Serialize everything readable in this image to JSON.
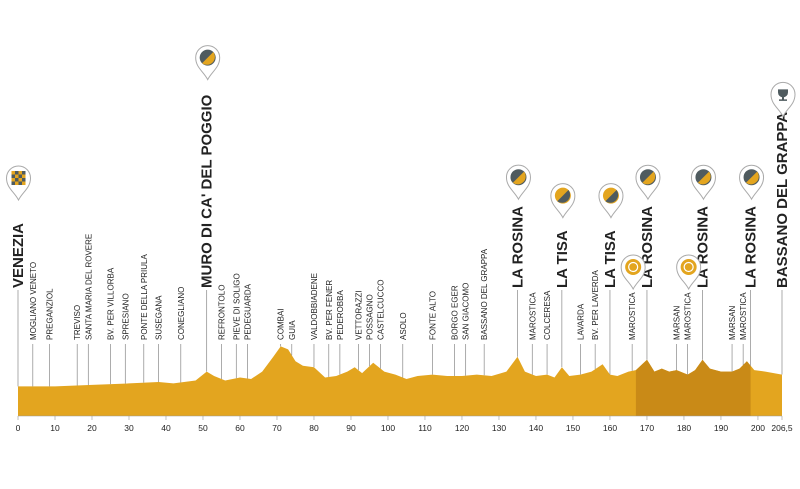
{
  "chart_data": {
    "type": "area",
    "title": "",
    "xlabel": "",
    "ylabel": "",
    "xlim": [
      0,
      206.5
    ],
    "x_ticks": [
      "0",
      "10",
      "20",
      "30",
      "40",
      "50",
      "60",
      "70",
      "80",
      "90",
      "100",
      "110",
      "120",
      "130",
      "140",
      "150",
      "160",
      "170",
      "180",
      "190",
      "200",
      "206,5"
    ],
    "colors": {
      "fill": "#E3A51F",
      "fill_dark": "#C98A17",
      "line": "#888888",
      "text": "#222222",
      "pin_dark": "#4F5B5F",
      "pin_gold": "#E9A91C"
    },
    "profile": [
      [
        0,
        0.2
      ],
      [
        10,
        0.2
      ],
      [
        20,
        0.21
      ],
      [
        30,
        0.22
      ],
      [
        38,
        0.23
      ],
      [
        42,
        0.22
      ],
      [
        48,
        0.24
      ],
      [
        51,
        0.3
      ],
      [
        53,
        0.27
      ],
      [
        56,
        0.24
      ],
      [
        60,
        0.26
      ],
      [
        63,
        0.25
      ],
      [
        66,
        0.3
      ],
      [
        69,
        0.4
      ],
      [
        71,
        0.47
      ],
      [
        73,
        0.45
      ],
      [
        75,
        0.37
      ],
      [
        77,
        0.34
      ],
      [
        80,
        0.33
      ],
      [
        83,
        0.26
      ],
      [
        86,
        0.27
      ],
      [
        89,
        0.3
      ],
      [
        91,
        0.33
      ],
      [
        93,
        0.29
      ],
      [
        96,
        0.36
      ],
      [
        99,
        0.3
      ],
      [
        102,
        0.28
      ],
      [
        105,
        0.25
      ],
      [
        108,
        0.27
      ],
      [
        112,
        0.28
      ],
      [
        116,
        0.27
      ],
      [
        120,
        0.27
      ],
      [
        124,
        0.28
      ],
      [
        128,
        0.27
      ],
      [
        132,
        0.3
      ],
      [
        135,
        0.4
      ],
      [
        137,
        0.3
      ],
      [
        140,
        0.27
      ],
      [
        143,
        0.28
      ],
      [
        145,
        0.26
      ],
      [
        147,
        0.33
      ],
      [
        149,
        0.27
      ],
      [
        152,
        0.28
      ],
      [
        155,
        0.3
      ],
      [
        158,
        0.35
      ],
      [
        160,
        0.28
      ],
      [
        162,
        0.27
      ],
      [
        165,
        0.3
      ],
      [
        167,
        0.31
      ],
      [
        170,
        0.38
      ],
      [
        172,
        0.3
      ],
      [
        174,
        0.32
      ],
      [
        176,
        0.3
      ],
      [
        178,
        0.31
      ],
      [
        181,
        0.28
      ],
      [
        183,
        0.31
      ],
      [
        185,
        0.38
      ],
      [
        187,
        0.32
      ],
      [
        190,
        0.3
      ],
      [
        193,
        0.3
      ],
      [
        195,
        0.32
      ],
      [
        197,
        0.37
      ],
      [
        199,
        0.31
      ],
      [
        202,
        0.3
      ],
      [
        206.5,
        0.28
      ]
    ],
    "final_circuit": [
      167,
      198
    ],
    "labels": [
      {
        "km": 0,
        "text": "VENEZIA",
        "style": "big"
      },
      {
        "km": 4,
        "text": "MOGLIANO VENETO"
      },
      {
        "km": 8.5,
        "text": "PREGANZIOL"
      },
      {
        "km": 16,
        "text": "TREVISO"
      },
      {
        "km": 19,
        "text": "SANTA MARIA DEL ROVERE"
      },
      {
        "km": 25,
        "text": "BV. PER VILLORBA"
      },
      {
        "km": 29,
        "text": "SPRESIANO"
      },
      {
        "km": 34,
        "text": "PONTE DELLA PRIULA"
      },
      {
        "km": 38,
        "text": "SUSEGANA"
      },
      {
        "km": 44,
        "text": "CONEGLIANO"
      },
      {
        "km": 51,
        "text": "MURO DI CA' DEL POGGIO",
        "style": "big",
        "pin": "dark"
      },
      {
        "km": 55,
        "text": "REFRONTOLO"
      },
      {
        "km": 59,
        "text": "PIEVE DI SOLIGO"
      },
      {
        "km": 62,
        "text": "PEDEGUARDA"
      },
      {
        "km": 71,
        "text": "COMBAI"
      },
      {
        "km": 74,
        "text": "GUIA"
      },
      {
        "km": 80,
        "text": "VALDOBBIADENE"
      },
      {
        "km": 84,
        "text": "BV. PER FENER"
      },
      {
        "km": 87,
        "text": "PEDEROBBA"
      },
      {
        "km": 92,
        "text": "VETTORAZZI"
      },
      {
        "km": 95,
        "text": "POSSAGNO"
      },
      {
        "km": 98,
        "text": "CASTELCUCCO"
      },
      {
        "km": 104,
        "text": "ASOLO"
      },
      {
        "km": 112,
        "text": "FONTE ALTO"
      },
      {
        "km": 118,
        "text": "BORGO EGER"
      },
      {
        "km": 121,
        "text": "SAN GIACOMO"
      },
      {
        "km": 126,
        "text": "BASSANO DEL GRAPPA"
      },
      {
        "km": 135,
        "text": "LA ROSINA",
        "style": "big",
        "pin": "dark"
      },
      {
        "km": 139,
        "text": "MAROSTICA"
      },
      {
        "km": 143,
        "text": "COLCERESA"
      },
      {
        "km": 147,
        "text": "LA TISA",
        "style": "big",
        "pin": "gold"
      },
      {
        "km": 152,
        "text": "LAVARDA"
      },
      {
        "km": 156,
        "text": "BV. PER LAVERDA"
      },
      {
        "km": 160,
        "text": "LA TISA",
        "style": "big",
        "pin": "gold"
      },
      {
        "km": 166,
        "text": "MAROSTICA",
        "pin": "sprint"
      },
      {
        "km": 170,
        "text": "LA ROSINA",
        "style": "big",
        "pin": "dark"
      },
      {
        "km": 178,
        "text": "MARSAN"
      },
      {
        "km": 181,
        "text": "MAROSTICA",
        "pin": "sprint"
      },
      {
        "km": 185,
        "text": "LA ROSINA",
        "style": "big",
        "pin": "dark"
      },
      {
        "km": 193,
        "text": "MARSAN"
      },
      {
        "km": 196,
        "text": "MAROSTICA"
      },
      {
        "km": 198,
        "text": "LA ROSINA",
        "style": "big",
        "pin": "dark"
      },
      {
        "km": 206.5,
        "text": "BASSANO DEL GRAPPA",
        "style": "big",
        "pin": "finish"
      }
    ]
  }
}
